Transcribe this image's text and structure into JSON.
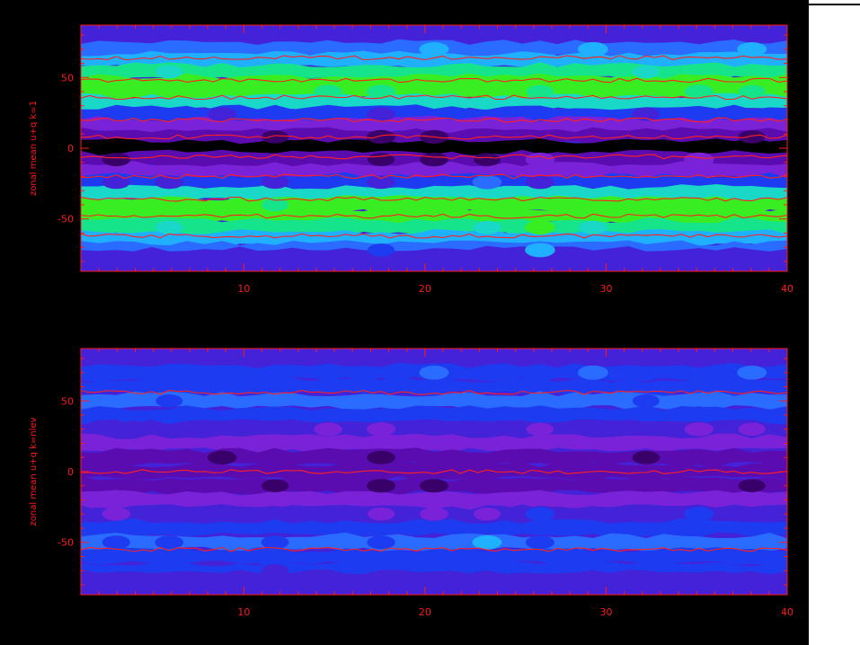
{
  "colors": {
    "background": "#000000",
    "axis": "#ff1a1a",
    "contour_line": "#ff2020",
    "palette": [
      "#000000",
      "#3a006a",
      "#5a0cb0",
      "#7a22d8",
      "#4422d8",
      "#1d3bf0",
      "#2a6cff",
      "#1fb0ff",
      "#19d8c8",
      "#16e48a",
      "#38ee22",
      "#a0ec10",
      "#e6e640"
    ]
  },
  "chart_data": [
    {
      "type": "heatmap",
      "title": "",
      "xlabel": "",
      "ylabel": "zonal mean u+q k=1",
      "xlim": [
        1,
        40
      ],
      "ylim": [
        -87,
        87
      ],
      "xticks": [
        10,
        20,
        30,
        40
      ],
      "yticks": [
        50,
        0,
        -50
      ],
      "bands": [
        {
          "lat": 78,
          "level": 4
        },
        {
          "lat": 70,
          "level": 6
        },
        {
          "lat": 62,
          "level": 7
        },
        {
          "lat": 54,
          "level": 9
        },
        {
          "lat": 46,
          "level": 10
        },
        {
          "lat": 40,
          "level": 10
        },
        {
          "lat": 32,
          "level": 8
        },
        {
          "lat": 24,
          "level": 5
        },
        {
          "lat": 16,
          "level": 3
        },
        {
          "lat": 8,
          "level": 2
        },
        {
          "lat": 0,
          "level": 0
        },
        {
          "lat": -8,
          "level": 2
        },
        {
          "lat": -16,
          "level": 3
        },
        {
          "lat": -24,
          "level": 5
        },
        {
          "lat": -32,
          "level": 8
        },
        {
          "lat": -40,
          "level": 10
        },
        {
          "lat": -48,
          "level": 10
        },
        {
          "lat": -56,
          "level": 9
        },
        {
          "lat": -64,
          "level": 7
        },
        {
          "lat": -72,
          "level": 6
        },
        {
          "lat": -80,
          "level": 4
        }
      ],
      "contours": [
        {
          "lat": 64
        },
        {
          "lat": 48
        },
        {
          "lat": 36
        },
        {
          "lat": 20
        },
        {
          "lat": 8
        },
        {
          "lat": -6
        },
        {
          "lat": -20
        },
        {
          "lat": -36
        },
        {
          "lat": -48
        },
        {
          "lat": -62
        }
      ]
    },
    {
      "type": "heatmap",
      "title": "",
      "xlabel": "",
      "ylabel": "zonal mean u+q k=nlev",
      "xlim": [
        1,
        40
      ],
      "ylim": [
        -87,
        87
      ],
      "xticks": [
        10,
        20,
        30,
        40
      ],
      "yticks": [
        50,
        0,
        -50
      ],
      "bands": [
        {
          "lat": 80,
          "level": 4
        },
        {
          "lat": 70,
          "level": 5
        },
        {
          "lat": 60,
          "level": 5
        },
        {
          "lat": 50,
          "level": 6
        },
        {
          "lat": 40,
          "level": 5
        },
        {
          "lat": 30,
          "level": 4
        },
        {
          "lat": 20,
          "level": 3
        },
        {
          "lat": 10,
          "level": 2
        },
        {
          "lat": 0,
          "level": 2
        },
        {
          "lat": -10,
          "level": 2
        },
        {
          "lat": -20,
          "level": 3
        },
        {
          "lat": -30,
          "level": 4
        },
        {
          "lat": -40,
          "level": 5
        },
        {
          "lat": -50,
          "level": 6
        },
        {
          "lat": -60,
          "level": 5
        },
        {
          "lat": -70,
          "level": 5
        },
        {
          "lat": -80,
          "level": 4
        }
      ],
      "contours": [
        {
          "lat": 56
        },
        {
          "lat": 0
        },
        {
          "lat": -55
        }
      ]
    }
  ]
}
